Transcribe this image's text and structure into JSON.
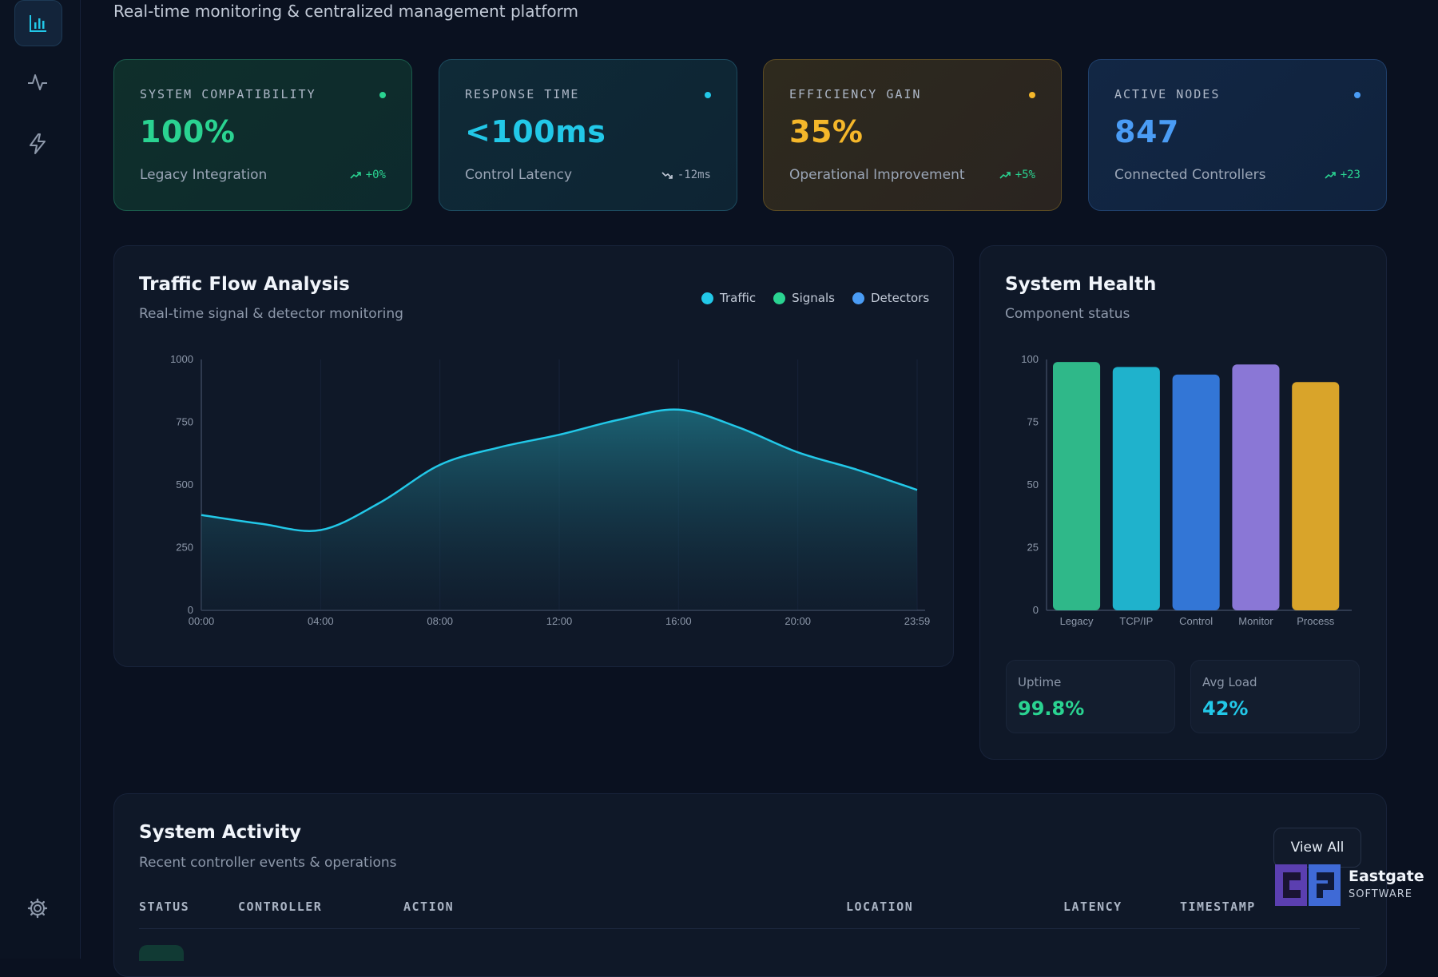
{
  "header": {
    "subtitle": "Real-time monitoring & centralized management platform"
  },
  "sidebar": {
    "items": [
      {
        "icon": "bar-chart-icon",
        "active": true
      },
      {
        "icon": "activity-icon",
        "active": false
      },
      {
        "icon": "lightning-icon",
        "active": false
      },
      {
        "icon": "gear-icon",
        "active": false
      }
    ]
  },
  "stats": [
    {
      "label": "SYSTEM COMPATIBILITY",
      "value": "100%",
      "desc": "Legacy Integration",
      "delta": "+0%",
      "trend": "up",
      "accent": "#2ad391"
    },
    {
      "label": "RESPONSE TIME",
      "value": "<100ms",
      "desc": "Control Latency",
      "delta": "-12ms",
      "trend": "down",
      "accent": "#22c8e8"
    },
    {
      "label": "EFFICIENCY GAIN",
      "value": "35%",
      "desc": "Operational Improvement",
      "delta": "+5%",
      "trend": "up",
      "accent": "#f5b72a"
    },
    {
      "label": "ACTIVE NODES",
      "value": "847",
      "desc": "Connected Controllers",
      "delta": "+23",
      "trend": "up",
      "accent": "#4a9cf5"
    }
  ],
  "traffic": {
    "title": "Traffic Flow Analysis",
    "subtitle": "Real-time signal & detector monitoring",
    "legend": [
      {
        "name": "Traffic",
        "color": "#22c8e8"
      },
      {
        "name": "Signals",
        "color": "#2ad391"
      },
      {
        "name": "Detectors",
        "color": "#4a9cf5"
      }
    ]
  },
  "health": {
    "title": "System Health",
    "subtitle": "Component status",
    "uptime_label": "Uptime",
    "uptime_value": "99.8%",
    "load_label": "Avg Load",
    "load_value": "42%"
  },
  "activity": {
    "title": "System Activity",
    "subtitle": "Recent controller events & operations",
    "view_all": "View All",
    "columns": [
      "STATUS",
      "CONTROLLER",
      "ACTION",
      "LOCATION",
      "LATENCY",
      "TIMESTAMP"
    ]
  },
  "brand": {
    "name": "Eastgate",
    "tagline": "SOFTWARE"
  },
  "chart_data": [
    {
      "type": "area",
      "x": [
        "00:00",
        "02:00",
        "04:00",
        "06:00",
        "08:00",
        "10:00",
        "12:00",
        "14:00",
        "16:00",
        "18:00",
        "20:00",
        "22:00",
        "23:59"
      ],
      "series": [
        {
          "name": "Traffic",
          "values": [
            380,
            345,
            320,
            430,
            580,
            650,
            700,
            760,
            800,
            730,
            630,
            560,
            480
          ]
        }
      ],
      "ylim": [
        0,
        1000
      ],
      "yticks": [
        0,
        250,
        500,
        750,
        1000
      ],
      "xticks": [
        "00:00",
        "04:00",
        "08:00",
        "12:00",
        "16:00",
        "20:00",
        "23:59"
      ],
      "grid": true
    },
    {
      "type": "bar",
      "categories": [
        "Legacy",
        "TCP/IP",
        "Control",
        "Monitor",
        "Process"
      ],
      "values": [
        99,
        97,
        94,
        98,
        91
      ],
      "colors": [
        "#2fb889",
        "#1fb2cc",
        "#3376d6",
        "#8a77d6",
        "#d9a42a"
      ],
      "ylim": [
        0,
        100
      ],
      "yticks": [
        0,
        25,
        50,
        75,
        100
      ]
    }
  ]
}
